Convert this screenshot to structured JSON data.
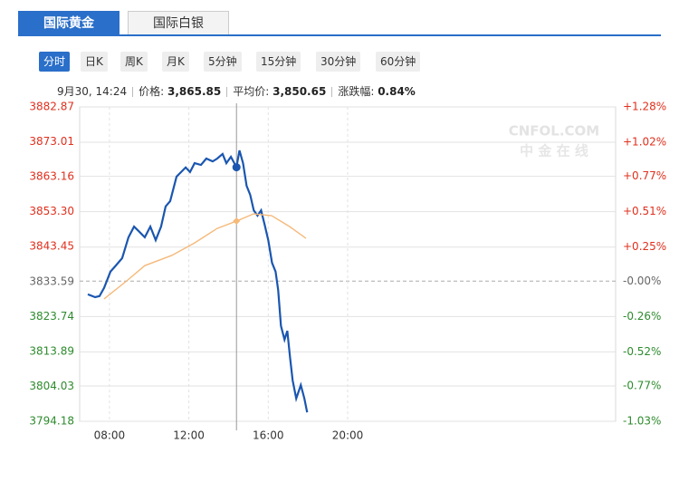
{
  "tabs": [
    "国际黄金",
    "国际白银"
  ],
  "periods": [
    "分时",
    "日K",
    "周K",
    "月K",
    "5分钟",
    "15分钟",
    "30分钟",
    "60分钟"
  ],
  "info": {
    "time": "9月30, 14:24",
    "price_label": "价格:",
    "price": "3,865.85",
    "avg_label": "平均价:",
    "avg": "3,850.65",
    "change_label": "涨跌幅:",
    "change": "0.84%"
  },
  "watermark": [
    "CNFOL.COM",
    "中 金 在 线"
  ],
  "chart_data": {
    "type": "line",
    "xlim": [
      6.5,
      33.5
    ],
    "xticks": [
      {
        "value": 8,
        "label": "08:00"
      },
      {
        "value": 12,
        "label": "12:00"
      },
      {
        "value": 16,
        "label": "16:00"
      },
      {
        "value": 20,
        "label": "20:00"
      }
    ],
    "ylim": [
      3794.18,
      3882.87
    ],
    "yticks": [
      3882.87,
      3873.01,
      3863.16,
      {
        "value": 3853.3,
        "label": "3853.30"
      },
      3843.45,
      3833.59,
      3823.74,
      3813.89,
      3804.03,
      3794.18
    ],
    "y2lim": [
      -1.03,
      1.28
    ],
    "y2ticks": [
      {
        "value": 1.28,
        "label": "+1.28%"
      },
      {
        "value": 1.02,
        "label": "+1.02%"
      },
      {
        "value": 0.77,
        "label": "+0.77%"
      },
      {
        "value": 0.51,
        "label": "+0.51%"
      },
      {
        "value": 0.25,
        "label": "+0.25%"
      },
      {
        "value": 0,
        "label": "-0.00%"
      },
      {
        "value": -0.26,
        "label": "-0.26%"
      },
      {
        "value": -0.52,
        "label": "-0.52%"
      },
      {
        "value": -0.77,
        "label": "-0.77%"
      },
      {
        "value": -1.03,
        "label": "-1.03%"
      }
    ],
    "up_color": "#e0301e",
    "down_color": "#2e8b2e",
    "flat_color": "#666666",
    "grid": true,
    "cursor_x": 14.4,
    "series": [
      {
        "color": "#1a56b0",
        "x": [
          6.91,
          7.28,
          7.5,
          7.73,
          8.05,
          8.32,
          8.64,
          8.96,
          9.24,
          9.46,
          9.78,
          10.06,
          10.33,
          10.6,
          10.83,
          11.06,
          11.38,
          11.61,
          11.84,
          12.06,
          12.29,
          12.61,
          12.88,
          13.2,
          13.43,
          13.7,
          13.89,
          14.12,
          14.4,
          14.55,
          14.73,
          14.91,
          15.09,
          15.27,
          15.46,
          15.64,
          15.82,
          16.0,
          16.19,
          16.37,
          16.5,
          16.64,
          16.82,
          16.96,
          17.1,
          17.23,
          17.41,
          17.64,
          17.82,
          17.96
        ],
        "values": [
          3830.0,
          3829.2,
          3829.5,
          3831.8,
          3836.4,
          3838.1,
          3840.2,
          3846.1,
          3849.1,
          3847.9,
          3846.1,
          3849.1,
          3845.3,
          3849.1,
          3854.8,
          3856.3,
          3863.2,
          3864.5,
          3865.8,
          3864.5,
          3867.0,
          3866.5,
          3868.3,
          3867.5,
          3868.3,
          3869.6,
          3867.0,
          3868.8,
          3865.85,
          3870.6,
          3867.0,
          3860.6,
          3858.1,
          3853.7,
          3852.2,
          3853.7,
          3849.6,
          3845.3,
          3838.9,
          3836.4,
          3831.2,
          3821.1,
          3817.2,
          3819.7,
          3812.1,
          3805.7,
          3800.6,
          3804.4,
          3800.6,
          3796.7
        ]
      },
      {
        "color": "#f5b97a",
        "x": [
          7.73,
          8.87,
          9.78,
          11.15,
          12.29,
          13.43,
          14.4,
          15.26,
          16.17,
          17.08,
          17.9
        ],
        "values": [
          3828.7,
          3833.8,
          3838.1,
          3841.0,
          3844.5,
          3848.6,
          3850.65,
          3852.7,
          3852.2,
          3849.1,
          3845.8
        ]
      }
    ]
  }
}
